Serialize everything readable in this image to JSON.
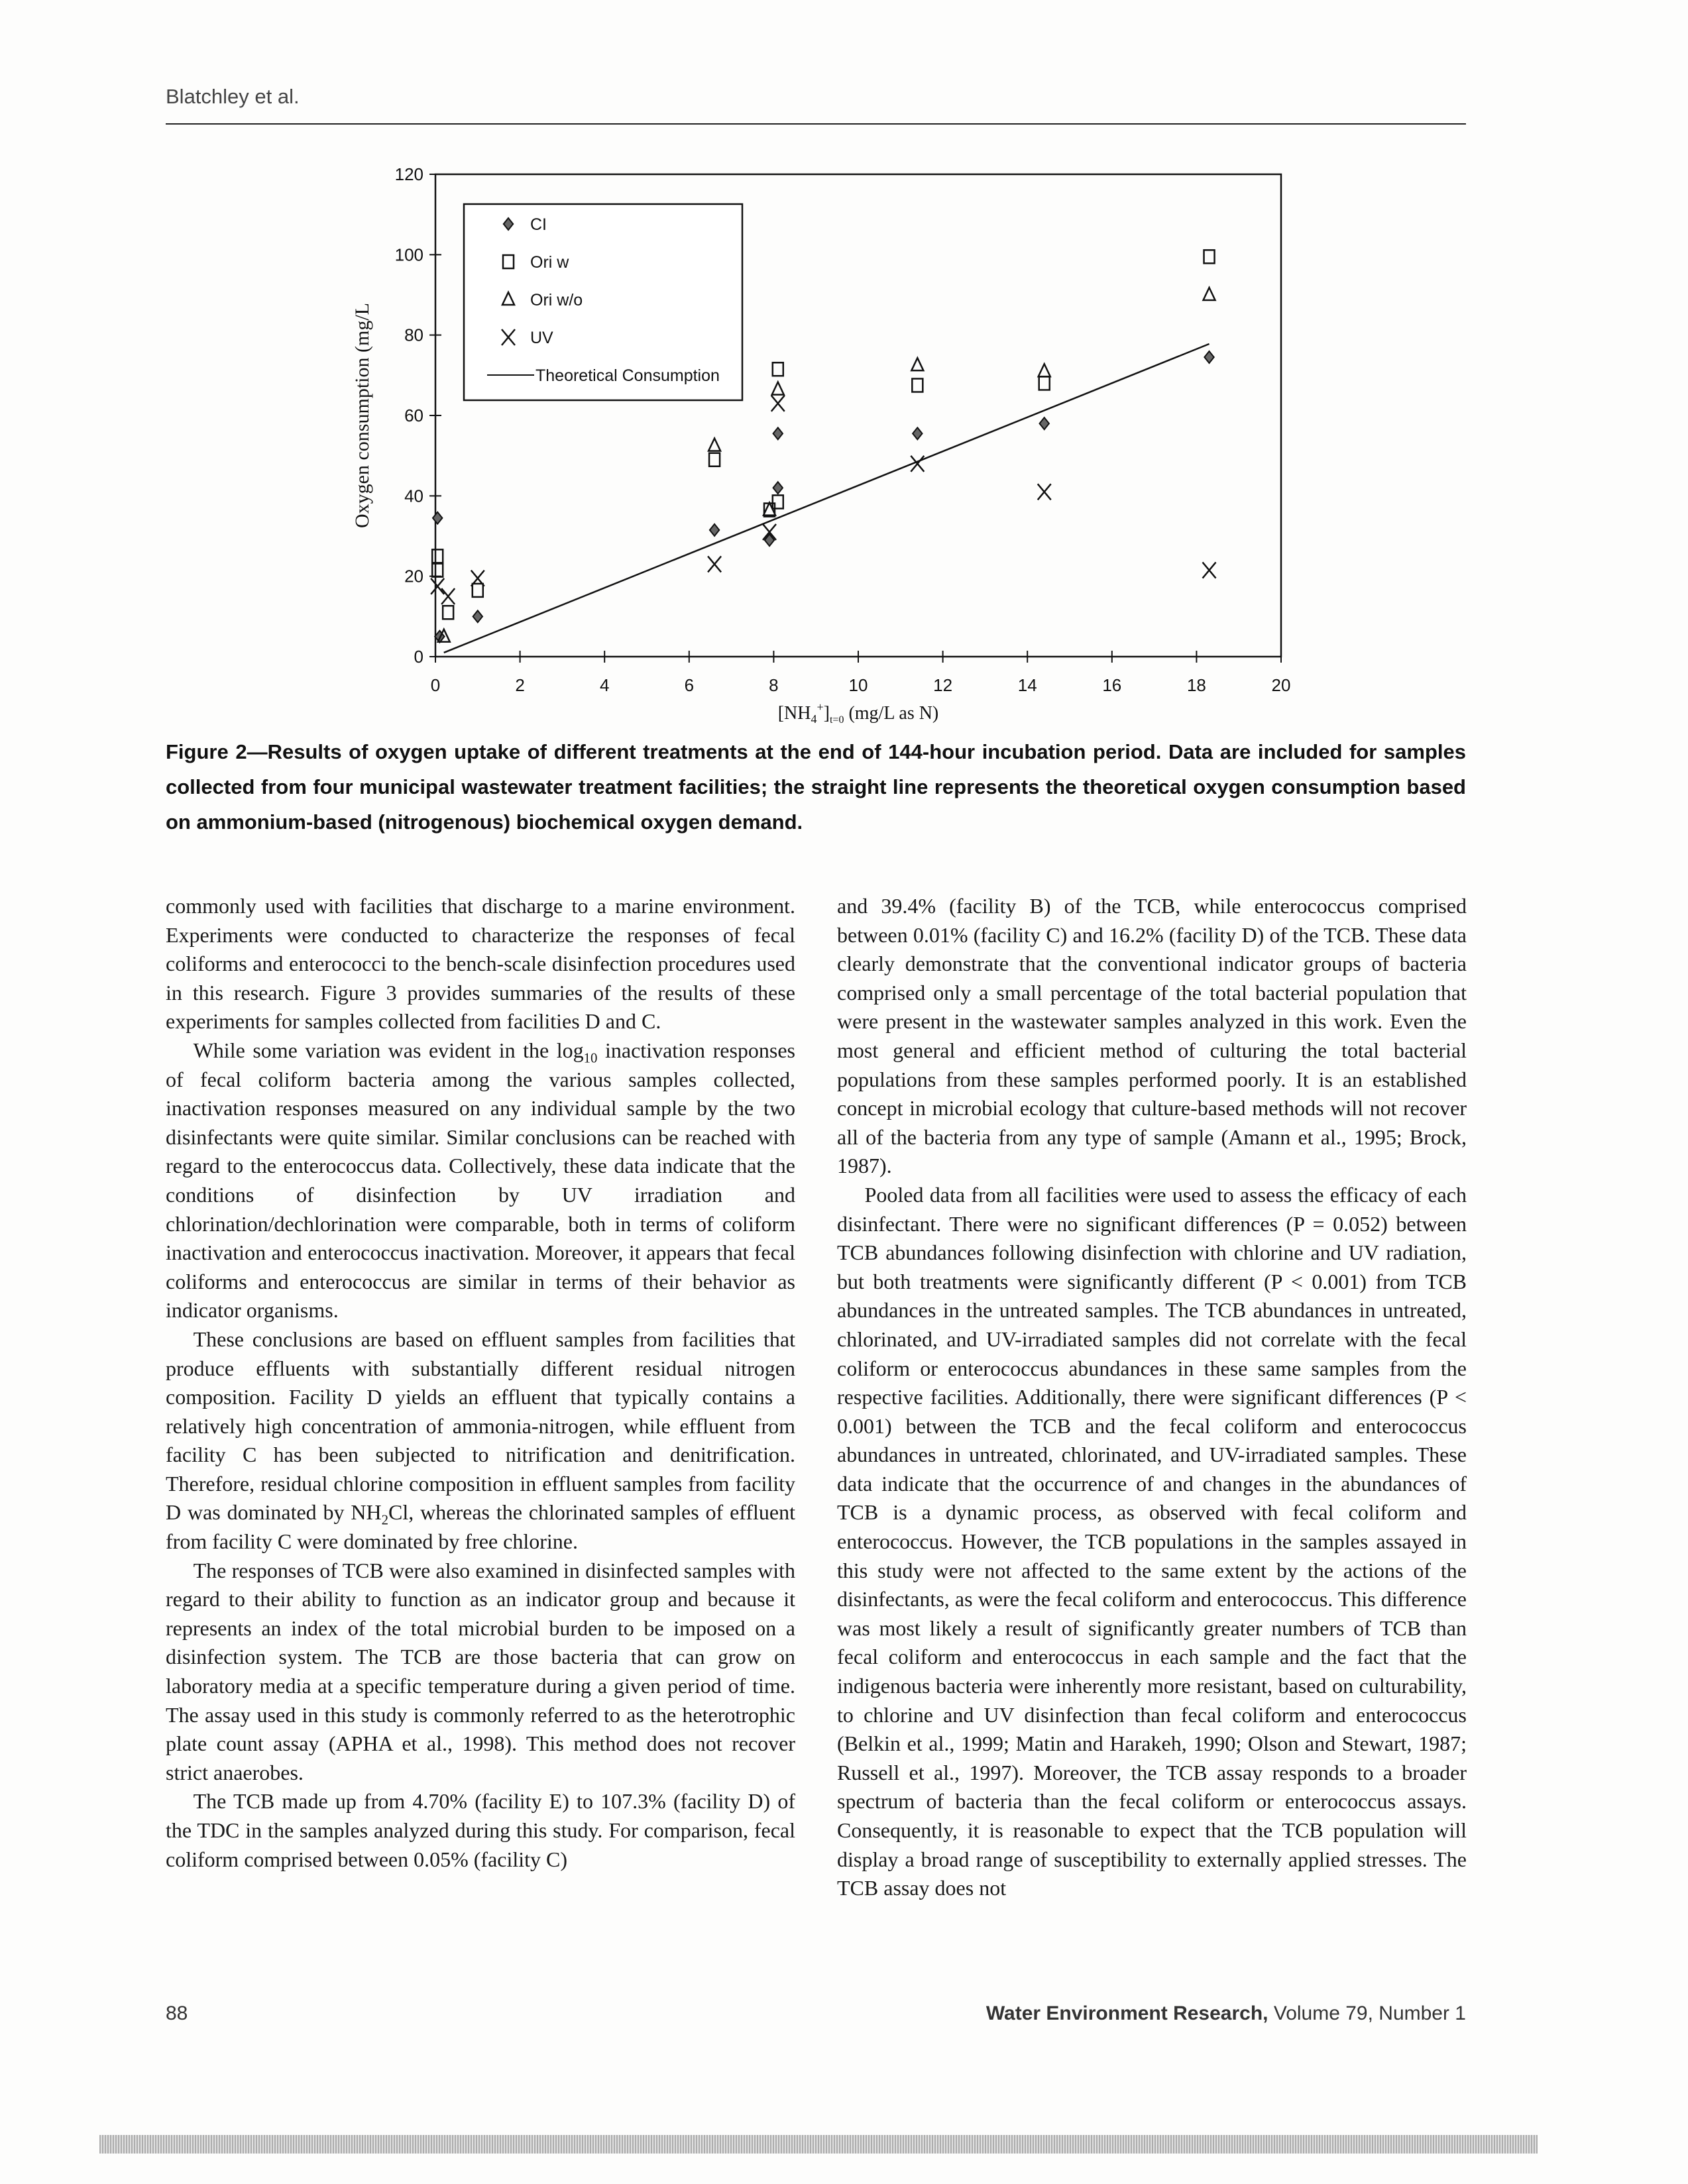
{
  "header": {
    "running_head": "Blatchley et al."
  },
  "chart_data": {
    "type": "scatter",
    "ylabel": "Oxygen consumption (mg/L",
    "xlabel": {
      "pre": "[NH",
      "sub1": "4",
      "sup": "+",
      "post1": "]",
      "sub2": "t=0",
      "post2": " (mg/L as N)"
    },
    "xlim": [
      0,
      20
    ],
    "ylim": [
      0,
      120
    ],
    "xticks": [
      "0",
      "2",
      "4",
      "6",
      "8",
      "10",
      "12",
      "14",
      "16",
      "18",
      "20"
    ],
    "yticks": [
      "0",
      "20",
      "40",
      "60",
      "80",
      "100",
      "120"
    ],
    "grid": false,
    "legend_placement": "top-left (inside)",
    "series": [
      {
        "name": "CI",
        "marker": "diamond",
        "points": [
          [
            0.05,
            34.5
          ],
          [
            0.1,
            5
          ],
          [
            1.0,
            10
          ],
          [
            6.6,
            31.5
          ],
          [
            7.9,
            29
          ],
          [
            8.1,
            42
          ],
          [
            8.1,
            55.5
          ],
          [
            11.4,
            55.5
          ],
          [
            14.4,
            58
          ],
          [
            18.3,
            74.5
          ]
        ]
      },
      {
        "name": "Ori w",
        "marker": "square",
        "points": [
          [
            0.05,
            25
          ],
          [
            0.05,
            21.5
          ],
          [
            0.3,
            11
          ],
          [
            1.0,
            16.5
          ],
          [
            6.6,
            49
          ],
          [
            7.9,
            36.5
          ],
          [
            8.1,
            38.5
          ],
          [
            8.1,
            71.5
          ],
          [
            11.4,
            67.5
          ],
          [
            14.4,
            68
          ],
          [
            18.3,
            99.5
          ]
        ]
      },
      {
        "name": "Ori w/o",
        "marker": "triangle",
        "points": [
          [
            0.2,
            5
          ],
          [
            6.6,
            52.5
          ],
          [
            7.9,
            36.5
          ],
          [
            8.1,
            66.5
          ],
          [
            11.4,
            72.5
          ],
          [
            14.4,
            71
          ],
          [
            18.3,
            90
          ]
        ]
      },
      {
        "name": "UV",
        "marker": "x",
        "points": [
          [
            0.05,
            17.5
          ],
          [
            0.3,
            15
          ],
          [
            1.0,
            19.5
          ],
          [
            6.6,
            23
          ],
          [
            7.9,
            31
          ],
          [
            8.1,
            63
          ],
          [
            11.4,
            48
          ],
          [
            14.4,
            41
          ],
          [
            18.3,
            21.5
          ]
        ]
      },
      {
        "name": "Theoretical Consumption",
        "marker": "line",
        "points": [
          [
            0.2,
            1
          ],
          [
            18.3,
            77.8
          ]
        ]
      }
    ]
  },
  "caption": "Figure 2—Results of oxygen uptake of different treatments at the end of 144-hour incubation period. Data are included for samples collected from four municipal wastewater treatment facilities; the straight line represents the theoretical oxygen consumption based on ammonium-based (nitrogenous) biochemical oxygen demand.",
  "body": {
    "left": {
      "p1": "commonly used with facilities that discharge to a marine environment. Experiments were conducted to characterize the responses of fecal coliforms and enterococci to the bench-scale disinfection procedures used in this research. Figure 3 provides summaries of the results of these experiments for samples collected from facilities D and C.",
      "p2a": "While some variation was evident in the log",
      "p2sub": "10",
      "p2b": " inactivation responses of fecal coliform bacteria among the various samples collected, inactivation responses measured on any individual sample by the two disinfectants were quite similar. Similar conclusions can be reached with regard to the enterococcus data. Collectively, these data indicate that the conditions of disinfection by UV irradiation and chlorination/dechlorination were comparable, both in terms of coliform inactivation and enterococcus inactivation. Moreover, it appears that fecal coliforms and enterococcus are similar in terms of their behavior as indicator organisms.",
      "p3a": "These conclusions are based on effluent samples from facilities that produce effluents with substantially different residual nitrogen composition. Facility D yields an effluent that typically contains a relatively high concentration of ammonia-nitrogen, while effluent from facility C has been subjected to nitrification and denitrification. Therefore, residual chlorine composition in effluent samples from facility D was dominated by NH",
      "p3sub": "2",
      "p3b": "Cl, whereas the chlorinated samples of effluent from facility C were dominated by free chlorine.",
      "p4": "The responses of TCB were also examined in disinfected samples with regard to their ability to function as an indicator group and because it represents an index of the total microbial burden to be imposed on a disinfection system. The TCB are those bacteria that can grow on laboratory media at a specific temperature during a given period of time. The assay used in this study is commonly referred to as the heterotrophic plate count assay (APHA et al., 1998). This method does not recover strict anaerobes.",
      "p5": "The TCB made up from 4.70% (facility E) to 107.3% (facility D) of the TDC in the samples analyzed during this study. For comparison, fecal coliform comprised between 0.05% (facility C)"
    },
    "right": {
      "p1": "and 39.4% (facility B) of the TCB, while enterococcus comprised between 0.01% (facility C) and 16.2% (facility D) of the TCB. These data clearly demonstrate that the conventional indicator groups of bacteria comprised only a small percentage of the total bacterial population that were present in the wastewater samples analyzed in this work. Even the most general and efficient method of culturing the total bacterial populations from these samples performed poorly. It is an established concept in microbial ecology that culture-based methods will not recover all of the bacteria from any type of sample (Amann et al., 1995; Brock, 1987).",
      "p2": "Pooled data from all facilities were used to assess the efficacy of each disinfectant. There were no significant differences (P = 0.052) between TCB abundances following disinfection with chlorine and UV radiation, but both treatments were significantly different (P < 0.001) from TCB abundances in the untreated samples. The TCB abundances in untreated, chlorinated, and UV-irradiated samples did not correlate with the fecal coliform or enterococcus abundances in these same samples from the respective facilities. Additionally, there were significant differences (P < 0.001) between the TCB and the fecal coliform and enterococcus abundances in untreated, chlorinated, and UV-irradiated samples. These data indicate that the occurrence of and changes in the abundances of TCB is a dynamic process, as observed with fecal coliform and enterococcus. However, the TCB populations in the samples assayed in this study were not affected to the same extent by the actions of the disinfectants, as were the fecal coliform and enterococcus. This difference was most likely a result of significantly greater numbers of TCB than fecal coliform and enterococcus in each sample and the fact that the indigenous bacteria were inherently more resistant, based on culturability, to chlorine and UV disinfection than fecal coliform and enterococcus (Belkin et al., 1999; Matin and Harakeh, 1990; Olson and Stewart, 1987; Russell et al., 1997). Moreover, the TCB assay responds to a broader spectrum of bacteria than the fecal coliform or enterococcus assays. Consequently, it is reasonable to expect that the TCB population will display a broad range of susceptibility to externally applied stresses. The TCB assay does not"
    }
  },
  "footer": {
    "page_number": "88",
    "journal_name": "Water Environment Research,",
    "volume_issue": " Volume 79, Number 1"
  }
}
